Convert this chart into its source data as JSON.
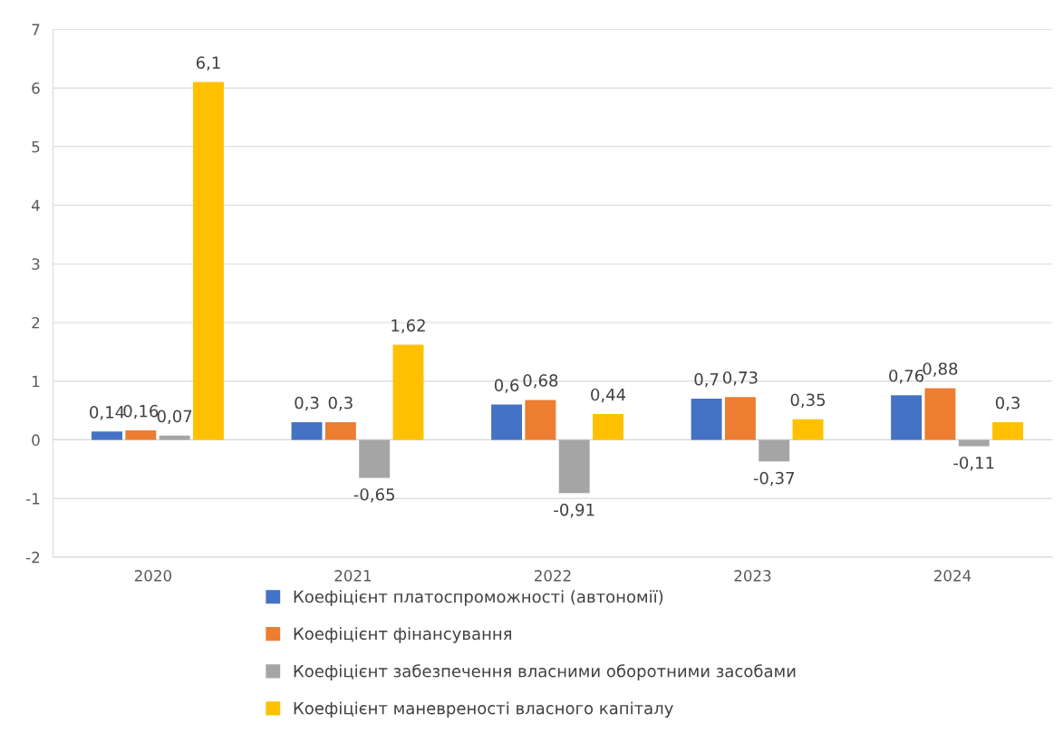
{
  "chart_data": {
    "type": "bar",
    "categories": [
      "2020",
      "2021",
      "2022",
      "2023",
      "2024"
    ],
    "series": [
      {
        "name": "Коефіцієнт платоспроможності (автономії)",
        "color": "#4472c4",
        "values": [
          0.14,
          0.3,
          0.6,
          0.7,
          0.76
        ],
        "value_labels": [
          "0,14",
          "0,3",
          "0,6",
          "0,7",
          "0,76"
        ]
      },
      {
        "name": "Коефіцієнт фінансування",
        "color": "#ed7d31",
        "values": [
          0.16,
          0.3,
          0.68,
          0.73,
          0.88
        ],
        "value_labels": [
          "0,16",
          "0,3",
          "0,68",
          "0,73",
          "0,88"
        ]
      },
      {
        "name": "Коефіцієнт забезпечення власними оборотними засобами",
        "color": "#a5a5a5",
        "values": [
          0.07,
          -0.65,
          -0.91,
          -0.37,
          -0.11
        ],
        "value_labels": [
          "0,07",
          "-0,65",
          "-0,91",
          "-0,37",
          "-0,11"
        ]
      },
      {
        "name": "Коефіцієнт маневреності власного капіталу",
        "color": "#ffc000",
        "values": [
          6.1,
          1.62,
          0.44,
          0.35,
          0.3
        ],
        "value_labels": [
          "6,1",
          "1,62",
          "0,44",
          "0,35",
          "0,3"
        ]
      }
    ],
    "ylim": [
      -2,
      7
    ],
    "yticks": [
      -2,
      -1,
      0,
      1,
      2,
      3,
      4,
      5,
      6,
      7
    ],
    "grid": "y",
    "legend": "bottom"
  }
}
